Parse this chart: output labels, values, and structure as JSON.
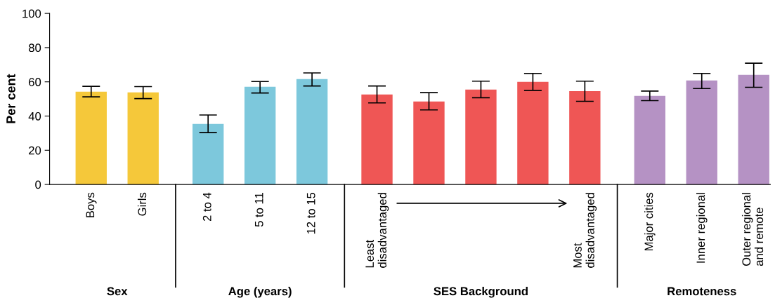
{
  "chart_data": {
    "type": "bar",
    "ylabel": "Per cent",
    "categories": [
      "Boys",
      "Girls",
      "2 to 4",
      "5 to 11",
      "12 to 15",
      "Least\ndisadvantaged",
      null,
      null,
      null,
      "Most\ndisadvantaged",
      "Major cities",
      "Inner regional",
      "Outer regional\nand remote"
    ],
    "series": [
      {
        "color": "#f5c83a",
        "values": [
          54.2,
          53.8,
          null,
          null,
          null,
          null,
          null,
          null,
          null,
          null,
          null,
          null,
          null
        ],
        "errors": [
          [
            51.2,
            57.4
          ],
          [
            50.2,
            57.2
          ],
          null,
          null,
          null,
          null,
          null,
          null,
          null,
          null,
          null,
          null,
          null
        ]
      },
      {
        "color": "#7dc8dc",
        "values": [
          null,
          null,
          35.4,
          57.1,
          61.6,
          null,
          null,
          null,
          null,
          null,
          null,
          null,
          null
        ],
        "errors": [
          null,
          null,
          [
            30.3,
            40.6
          ],
          [
            53.5,
            60.2
          ],
          [
            57.6,
            65.2
          ],
          null,
          null,
          null,
          null,
          null,
          null,
          null,
          null
        ]
      },
      {
        "color": "#ef5655",
        "values": [
          null,
          null,
          null,
          null,
          null,
          52.6,
          48.5,
          55.5,
          60.0,
          54.6,
          null,
          null,
          null
        ],
        "errors": [
          null,
          null,
          null,
          null,
          null,
          [
            47.7,
            57.6
          ],
          [
            43.6,
            53.7
          ],
          [
            50.7,
            60.4
          ],
          [
            55.0,
            64.9
          ],
          [
            48.6,
            60.4
          ],
          null,
          null,
          null
        ]
      },
      {
        "color": "#b592c4",
        "values": [
          null,
          null,
          null,
          null,
          null,
          null,
          null,
          null,
          null,
          null,
          51.8,
          60.8,
          64.1
        ],
        "errors": [
          null,
          null,
          null,
          null,
          null,
          null,
          null,
          null,
          null,
          null,
          [
            49.0,
            54.6
          ],
          [
            56.1,
            64.9
          ],
          [
            56.8,
            70.9
          ]
        ]
      }
    ],
    "annotations": [
      "Sex",
      "Age (years)",
      "SES Background",
      "Remoteness"
    ],
    "ylim": [
      0,
      100
    ],
    "yticks": [
      0,
      20,
      40,
      60,
      80,
      100
    ],
    "grid": false,
    "legend": false
  }
}
